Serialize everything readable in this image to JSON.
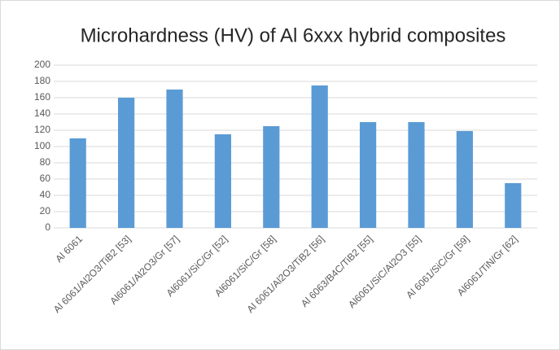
{
  "chart_data": {
    "type": "bar",
    "title": "Microhardness (HV) of Al 6xxx hybrid composites",
    "categories": [
      "Al 6061",
      "Al 6061/Al2O3/TiB2 [53]",
      "Al6061/Al2O3/Gr [57]",
      "Al6061/SiC/Gr [52]",
      "Al6061/SiC/Gr [58]",
      "Al 6061/Al2O3/TiB2 [56]",
      "Al 6063/B4C/TiB2 [55]",
      "Al6061/SiC/Al2O3 [55]",
      "Al 6061/SiC/Gr [59]",
      "Al6061/TiN/Gr [62]"
    ],
    "values": [
      110,
      160,
      170,
      115,
      125,
      175,
      130,
      130,
      119,
      55
    ],
    "color": "#5b9bd5",
    "ylim": [
      0,
      200
    ],
    "yticks": [
      0,
      20,
      40,
      60,
      80,
      100,
      120,
      140,
      160,
      180,
      200
    ],
    "grid": true
  }
}
